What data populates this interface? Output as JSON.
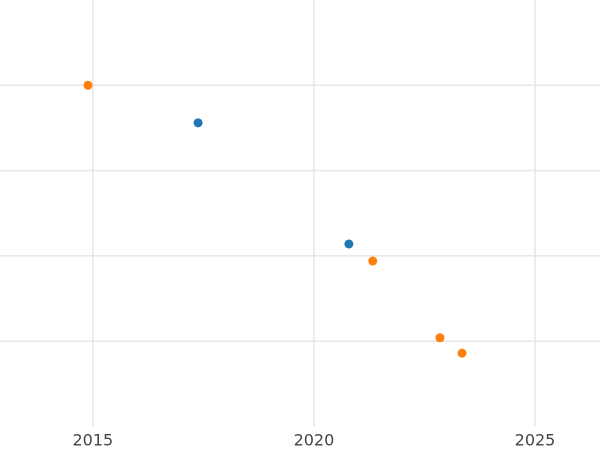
{
  "chart_data": {
    "type": "scatter",
    "series": [
      {
        "color": "#1f77b4",
        "x": [
          2017.38,
          2020.79
        ],
        "values": [
          3.56,
          2.14
        ]
      },
      {
        "color": "#ff7f0e",
        "x": [
          2014.89,
          2021.33,
          2022.85,
          2023.35
        ],
        "values": [
          4.0,
          1.94,
          1.04,
          0.86
        ]
      }
    ],
    "xlim": [
      2012.9,
      2026.47
    ],
    "xticks": [
      2015,
      2020,
      2025
    ],
    "ylim": [
      0,
      5
    ],
    "yticks": [
      1,
      2,
      3,
      4
    ],
    "ytick_labels": false,
    "grid": true
  }
}
